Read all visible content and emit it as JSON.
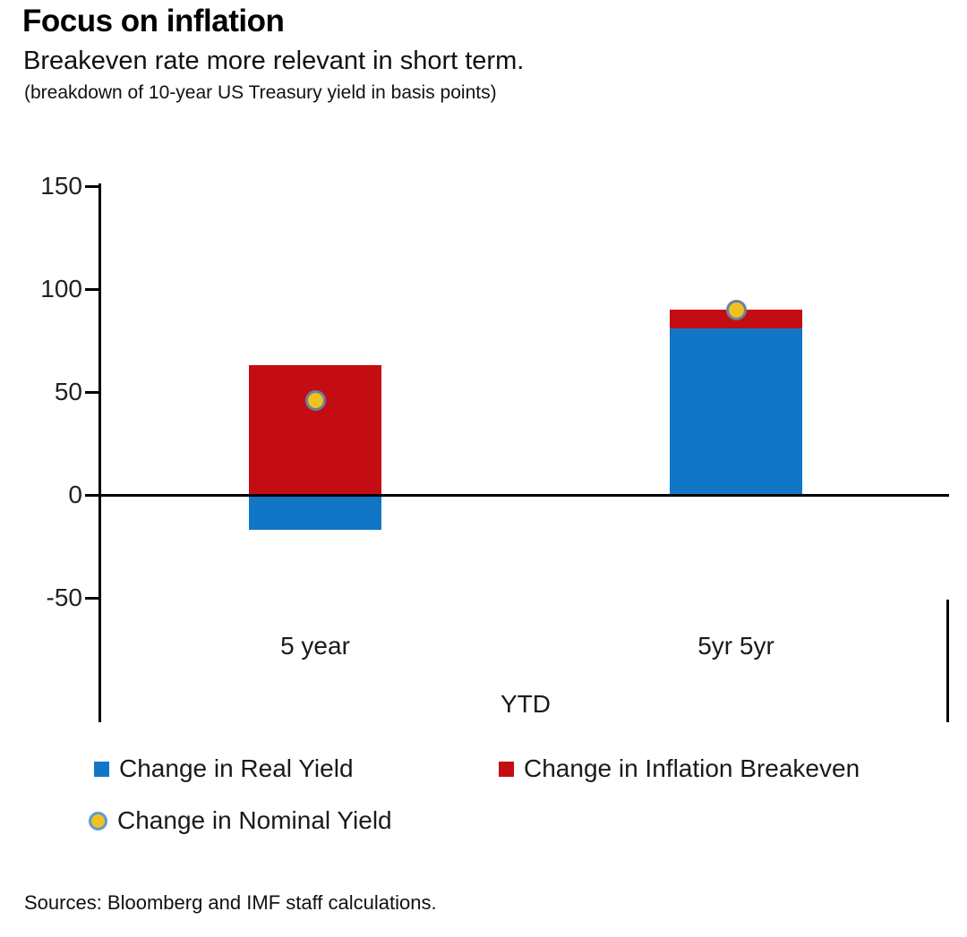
{
  "header": {
    "title": "Focus on inflation",
    "subtitle": "Breakeven rate more relevant in short term.",
    "note": "(breakdown of 10-year US Treasury yield in basis points)"
  },
  "chart_data": {
    "type": "bar",
    "stacked": true,
    "categories": [
      "5 year",
      "5yr 5yr"
    ],
    "group_label": "YTD",
    "series": [
      {
        "name": "Change in Real Yield",
        "kind": "bar",
        "color": "#1276C7",
        "values": [
          -17,
          81
        ]
      },
      {
        "name": "Change in Inflation Breakeven",
        "kind": "bar",
        "color": "#C40D12",
        "values": [
          63,
          9
        ]
      },
      {
        "name": "Change in Nominal Yield",
        "kind": "point",
        "color": "#F1C120",
        "ring_color": "#6B7FA0",
        "values": [
          46,
          90
        ]
      }
    ],
    "ylim": [
      -50,
      150
    ],
    "yticks": [
      150,
      100,
      50,
      0,
      -50
    ],
    "grid": false,
    "legend_position": "bottom",
    "axis_color": "#000000"
  },
  "legend": {
    "items": [
      {
        "label": "Change in Real Yield",
        "marker": "square",
        "color": "#1276C7"
      },
      {
        "label": "Change in Inflation Breakeven",
        "marker": "square",
        "color": "#C40D12"
      },
      {
        "label": "Change in Nominal Yield",
        "marker": "circle",
        "color": "#F1C120",
        "ring": "#5B9BD5"
      }
    ]
  },
  "footer": {
    "source": "Sources: Bloomberg and IMF staff calculations."
  }
}
